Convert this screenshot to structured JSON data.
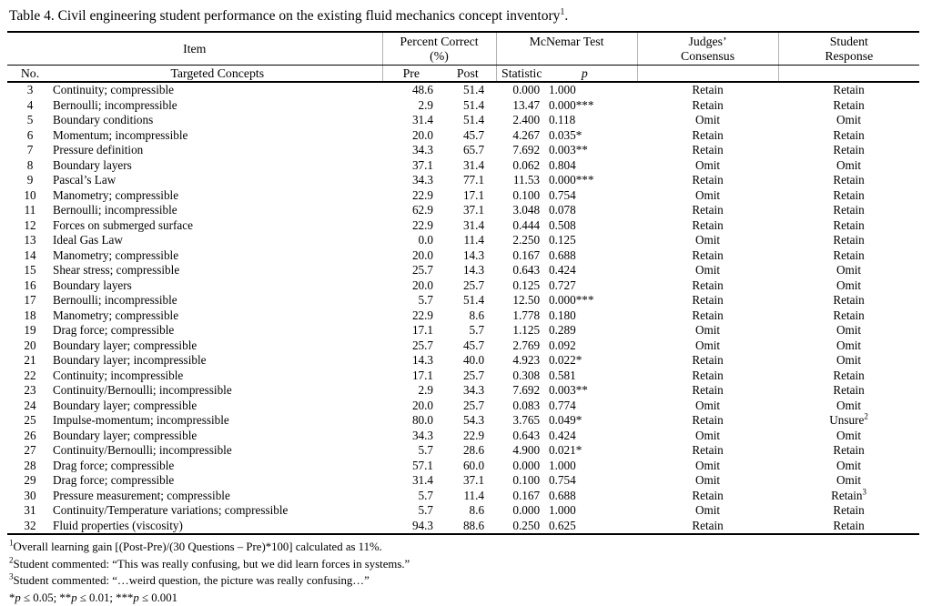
{
  "caption": {
    "text": "Table 4. Civil engineering student performance on the existing fluid mechanics concept inventory",
    "superscript": "1",
    "period": "."
  },
  "headers": {
    "item": "Item",
    "percent_correct_line1": "Percent Correct",
    "percent_correct_line2": "(%)",
    "mcnemar_test": "McNemar Test",
    "judges_line1": "Judges’",
    "judges_line2": "Consensus",
    "student_line1": "Student",
    "student_line2": "Response",
    "no": "No.",
    "targeted_concepts": "Targeted Concepts",
    "pre": "Pre",
    "post": "Post",
    "statistic": "Statistic",
    "p": "p"
  },
  "table": {
    "rows": [
      {
        "no": "3",
        "concept": "Continuity; compressible",
        "pre": "48.6",
        "post": "51.4",
        "statistic": "0.000",
        "p": "1.000",
        "judges": "Retain",
        "student": "Retain",
        "student_sup": ""
      },
      {
        "no": "4",
        "concept": "Bernoulli; incompressible",
        "pre": "2.9",
        "post": "51.4",
        "statistic": "13.47",
        "p": "0.000***",
        "judges": "Retain",
        "student": "Retain",
        "student_sup": ""
      },
      {
        "no": "5",
        "concept": "Boundary conditions",
        "pre": "31.4",
        "post": "51.4",
        "statistic": "2.400",
        "p": "0.118",
        "judges": "Omit",
        "student": "Omit",
        "student_sup": ""
      },
      {
        "no": "6",
        "concept": "Momentum; incompressible",
        "pre": "20.0",
        "post": "45.7",
        "statistic": "4.267",
        "p": "0.035*",
        "judges": "Retain",
        "student": "Retain",
        "student_sup": ""
      },
      {
        "no": "7",
        "concept": "Pressure definition",
        "pre": "34.3",
        "post": "65.7",
        "statistic": "7.692",
        "p": "0.003**",
        "judges": "Retain",
        "student": "Retain",
        "student_sup": ""
      },
      {
        "no": "8",
        "concept": "Boundary layers",
        "pre": "37.1",
        "post": "31.4",
        "statistic": "0.062",
        "p": "0.804",
        "judges": "Omit",
        "student": "Omit",
        "student_sup": ""
      },
      {
        "no": "9",
        "concept": "Pascal’s Law",
        "pre": "34.3",
        "post": "77.1",
        "statistic": "11.53",
        "p": "0.000***",
        "judges": "Retain",
        "student": "Retain",
        "student_sup": ""
      },
      {
        "no": "10",
        "concept": "Manometry; compressible",
        "pre": "22.9",
        "post": "17.1",
        "statistic": "0.100",
        "p": "0.754",
        "judges": "Omit",
        "student": "Retain",
        "student_sup": ""
      },
      {
        "no": "11",
        "concept": "Bernoulli; incompressible",
        "pre": "62.9",
        "post": "37.1",
        "statistic": "3.048",
        "p": "0.078",
        "judges": "Retain",
        "student": "Retain",
        "student_sup": ""
      },
      {
        "no": "12",
        "concept": "Forces on submerged surface",
        "pre": "22.9",
        "post": "31.4",
        "statistic": "0.444",
        "p": "0.508",
        "judges": "Retain",
        "student": "Retain",
        "student_sup": ""
      },
      {
        "no": "13",
        "concept": "Ideal Gas Law",
        "pre": "0.0",
        "post": "11.4",
        "statistic": "2.250",
        "p": "0.125",
        "judges": "Omit",
        "student": "Retain",
        "student_sup": ""
      },
      {
        "no": "14",
        "concept": "Manometry; compressible",
        "pre": "20.0",
        "post": "14.3",
        "statistic": "0.167",
        "p": "0.688",
        "judges": "Retain",
        "student": "Retain",
        "student_sup": ""
      },
      {
        "no": "15",
        "concept": "Shear stress; compressible",
        "pre": "25.7",
        "post": "14.3",
        "statistic": "0.643",
        "p": "0.424",
        "judges": "Omit",
        "student": "Omit",
        "student_sup": ""
      },
      {
        "no": "16",
        "concept": "Boundary layers",
        "pre": "20.0",
        "post": "25.7",
        "statistic": "0.125",
        "p": "0.727",
        "judges": "Retain",
        "student": "Omit",
        "student_sup": ""
      },
      {
        "no": "17",
        "concept": "Bernoulli; incompressible",
        "pre": "5.7",
        "post": "51.4",
        "statistic": "12.50",
        "p": "0.000***",
        "judges": "Retain",
        "student": "Retain",
        "student_sup": ""
      },
      {
        "no": "18",
        "concept": "Manometry; compressible",
        "pre": "22.9",
        "post": "8.6",
        "statistic": "1.778",
        "p": "0.180",
        "judges": "Retain",
        "student": "Retain",
        "student_sup": ""
      },
      {
        "no": "19",
        "concept": "Drag force; compressible",
        "pre": "17.1",
        "post": "5.7",
        "statistic": "1.125",
        "p": "0.289",
        "judges": "Omit",
        "student": "Omit",
        "student_sup": ""
      },
      {
        "no": "20",
        "concept": "Boundary layer; compressible",
        "pre": "25.7",
        "post": "45.7",
        "statistic": "2.769",
        "p": "0.092",
        "judges": "Omit",
        "student": "Omit",
        "student_sup": ""
      },
      {
        "no": "21",
        "concept": "Boundary layer; incompressible",
        "pre": "14.3",
        "post": "40.0",
        "statistic": "4.923",
        "p": "0.022*",
        "judges": "Retain",
        "student": "Omit",
        "student_sup": ""
      },
      {
        "no": "22",
        "concept": "Continuity; incompressible",
        "pre": "17.1",
        "post": "25.7",
        "statistic": "0.308",
        "p": "0.581",
        "judges": "Retain",
        "student": "Retain",
        "student_sup": ""
      },
      {
        "no": "23",
        "concept": "Continuity/Bernoulli; incompressible",
        "pre": "2.9",
        "post": "34.3",
        "statistic": "7.692",
        "p": "0.003**",
        "judges": "Retain",
        "student": "Retain",
        "student_sup": ""
      },
      {
        "no": "24",
        "concept": "Boundary layer; compressible",
        "pre": "20.0",
        "post": "25.7",
        "statistic": "0.083",
        "p": "0.774",
        "judges": "Omit",
        "student": "Omit",
        "student_sup": ""
      },
      {
        "no": "25",
        "concept": "Impulse-momentum; incompressible",
        "pre": "80.0",
        "post": "54.3",
        "statistic": "3.765",
        "p": "0.049*",
        "judges": "Retain",
        "student": "Unsure",
        "student_sup": "2"
      },
      {
        "no": "26",
        "concept": "Boundary layer; compressible",
        "pre": "34.3",
        "post": "22.9",
        "statistic": "0.643",
        "p": "0.424",
        "judges": "Omit",
        "student": "Omit",
        "student_sup": ""
      },
      {
        "no": "27",
        "concept": "Continuity/Bernoulli; incompressible",
        "pre": "5.7",
        "post": "28.6",
        "statistic": "4.900",
        "p": "0.021*",
        "judges": "Retain",
        "student": "Retain",
        "student_sup": ""
      },
      {
        "no": "28",
        "concept": "Drag force; compressible",
        "pre": "57.1",
        "post": "60.0",
        "statistic": "0.000",
        "p": "1.000",
        "judges": "Omit",
        "student": "Omit",
        "student_sup": ""
      },
      {
        "no": "29",
        "concept": "Drag force; compressible",
        "pre": "31.4",
        "post": "37.1",
        "statistic": "0.100",
        "p": "0.754",
        "judges": "Omit",
        "student": "Omit",
        "student_sup": ""
      },
      {
        "no": "30",
        "concept": "Pressure measurement; compressible",
        "pre": "5.7",
        "post": "11.4",
        "statistic": "0.167",
        "p": "0.688",
        "judges": "Retain",
        "student": "Retain",
        "student_sup": "3"
      },
      {
        "no": "31",
        "concept": "Continuity/Temperature variations; compressible",
        "pre": "5.7",
        "post": "8.6",
        "statistic": "0.000",
        "p": "1.000",
        "judges": "Omit",
        "student": "Retain",
        "student_sup": ""
      },
      {
        "no": "32",
        "concept": "Fluid properties (viscosity)",
        "pre": "94.3",
        "post": "88.6",
        "statistic": "0.250",
        "p": "0.625",
        "judges": "Retain",
        "student": "Retain",
        "student_sup": ""
      }
    ]
  },
  "footnotes": [
    {
      "sup": "1",
      "text": "Overall learning gain [(Post-Pre)/(30 Questions – Pre)*100] calculated as 11%."
    },
    {
      "sup": "2",
      "text": "Student commented: “This was really confusing, but we did learn forces in systems.”"
    },
    {
      "sup": "3",
      "text": "Student commented: “…weird question, the picture was really confusing…”"
    }
  ],
  "significance": {
    "star1": "*",
    "p": "p",
    "seg1": " ≤ 0.05; ",
    "star2": "**",
    "seg2": " ≤ 0.01; ",
    "star3": "***",
    "seg3": " ≤ 0.001"
  },
  "colors": {
    "page_background": "#ffffff",
    "text": "#000000",
    "rule": "#000000",
    "header_divider": "#b3b3b3"
  }
}
